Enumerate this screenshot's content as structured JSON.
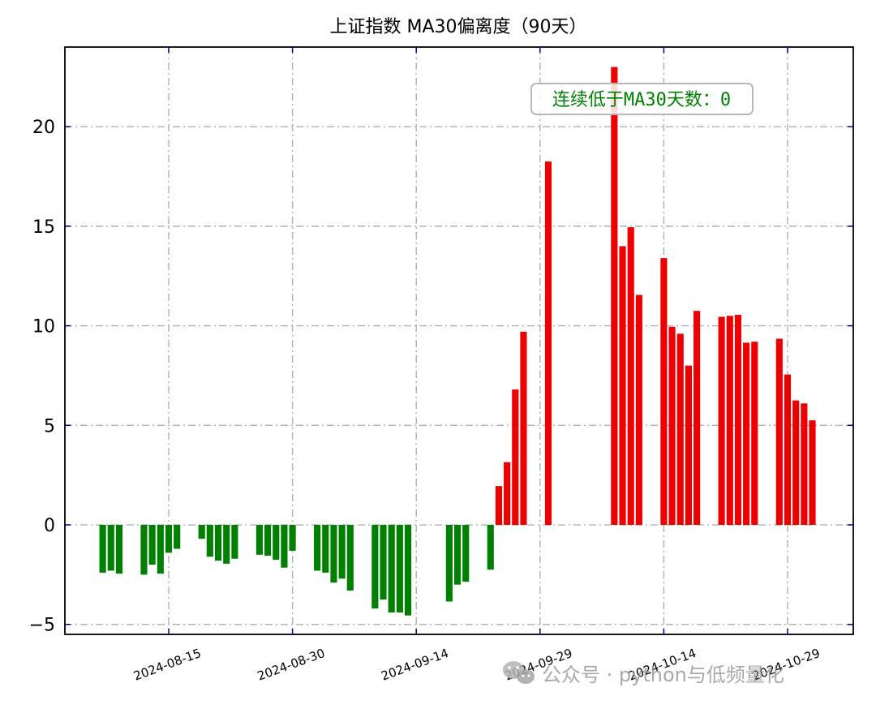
{
  "chart_data": {
    "type": "bar",
    "title": "上证指数 MA30偏离度（90天）",
    "xlabel": "",
    "ylabel": "",
    "x_ticks": [
      "2024-08-15",
      "2024-08-30",
      "2024-09-14",
      "2024-09-29",
      "2024-10-14",
      "2024-10-29"
    ],
    "y_ticks": [
      "−5",
      "0",
      "5",
      "10",
      "15",
      "20"
    ],
    "ylim": [
      -5.5,
      24
    ],
    "grid": true,
    "colors": {
      "positive": "#ee0000",
      "negative": "#008000",
      "grid": "#b0b0b0",
      "tick_marks": "#00008b"
    },
    "x": [
      "2024-08-07",
      "2024-08-08",
      "2024-08-09",
      "2024-08-12",
      "2024-08-13",
      "2024-08-14",
      "2024-08-15",
      "2024-08-16",
      "2024-08-19",
      "2024-08-20",
      "2024-08-21",
      "2024-08-22",
      "2024-08-23",
      "2024-08-26",
      "2024-08-27",
      "2024-08-28",
      "2024-08-29",
      "2024-08-30",
      "2024-09-02",
      "2024-09-03",
      "2024-09-04",
      "2024-09-05",
      "2024-09-06",
      "2024-09-09",
      "2024-09-10",
      "2024-09-11",
      "2024-09-12",
      "2024-09-13",
      "2024-09-18",
      "2024-09-19",
      "2024-09-20",
      "2024-09-23",
      "2024-09-24",
      "2024-09-25",
      "2024-09-26",
      "2024-09-27",
      "2024-09-30",
      "2024-10-08",
      "2024-10-09",
      "2024-10-10",
      "2024-10-11",
      "2024-10-14",
      "2024-10-15",
      "2024-10-16",
      "2024-10-17",
      "2024-10-18",
      "2024-10-21",
      "2024-10-22",
      "2024-10-23",
      "2024-10-24",
      "2024-10-25",
      "2024-10-28",
      "2024-10-29",
      "2024-10-30",
      "2024-10-31",
      "2024-11-01"
    ],
    "values": [
      -2.4,
      -2.3,
      -2.45,
      -2.5,
      -2.0,
      -2.45,
      -1.4,
      -1.2,
      -0.7,
      -1.6,
      -1.8,
      -1.95,
      -1.7,
      -1.5,
      -1.55,
      -1.75,
      -2.15,
      -1.3,
      -2.3,
      -2.4,
      -2.9,
      -2.7,
      -3.3,
      -4.2,
      -3.75,
      -4.4,
      -4.4,
      -4.55,
      -3.85,
      -3.0,
      -2.85,
      -2.25,
      1.95,
      3.15,
      6.8,
      9.7,
      18.25,
      23.0,
      14.0,
      14.95,
      11.55,
      13.4,
      9.95,
      9.6,
      8.0,
      10.75,
      10.45,
      10.5,
      10.55,
      9.15,
      9.2,
      9.35,
      7.55,
      6.25,
      6.1,
      5.25
    ]
  },
  "annotation": {
    "text": "连续低于MA30天数：0",
    "color": "#008000"
  },
  "watermark": {
    "icon": "wechat-icon",
    "text": "公众号 · python与低频量化"
  }
}
